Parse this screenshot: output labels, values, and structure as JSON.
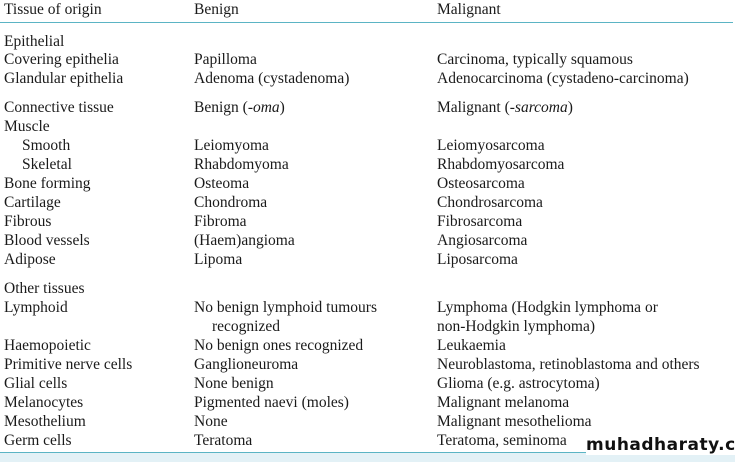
{
  "header": {
    "tissue": "Tissue of origin",
    "benign": "Benign",
    "malignant": "Malignant"
  },
  "rows": [
    {
      "tissue": "Epithelial",
      "benign": "",
      "malignant": "",
      "group": true
    },
    {
      "tissue": "Covering epithelia",
      "benign": "Papilloma",
      "malignant": "Carcinoma, typically squamous"
    },
    {
      "tissue": "Glandular epithelia",
      "benign": "Adenoma (cystadenoma)",
      "malignant": "Adenocarcinoma (cystadeno-carcinoma)"
    },
    {
      "tissue": "Connective tissue",
      "benign": "Benign (-oma)",
      "malignant": "Malignant (-sarcoma)",
      "group": true
    },
    {
      "tissue": "Muscle",
      "benign": "",
      "malignant": ""
    },
    {
      "tissue": "Smooth",
      "benign": "Leiomyoma",
      "malignant": "Leiomyosarcoma",
      "indent": true
    },
    {
      "tissue": "Skeletal",
      "benign": "Rhabdomyoma",
      "malignant": "Rhabdomyosarcoma",
      "indent": true
    },
    {
      "tissue": "Bone forming",
      "benign": "Osteoma",
      "malignant": "Osteosarcoma"
    },
    {
      "tissue": "Cartilage",
      "benign": "Chondroma",
      "malignant": "Chondrosarcoma"
    },
    {
      "tissue": "Fibrous",
      "benign": "Fibroma",
      "malignant": "Fibrosarcoma"
    },
    {
      "tissue": "Blood vessels",
      "benign": "(Haem)angioma",
      "malignant": "Angiosarcoma"
    },
    {
      "tissue": "Adipose",
      "benign": "Lipoma",
      "malignant": "Liposarcoma"
    },
    {
      "tissue": "Other tissues",
      "benign": "",
      "malignant": "",
      "group": true
    },
    {
      "tissue": "Lymphoid",
      "benign": "No benign lymphoid tumours",
      "malignant": "Lymphoma (Hodgkin lymphoma or"
    },
    {
      "tissue": "",
      "benign": "recognized",
      "malignant": "non-Hodgkin lymphoma)",
      "indent_benign": true
    },
    {
      "tissue": "Haemopoietic",
      "benign": "No benign ones recognized",
      "malignant": "Leukaemia"
    },
    {
      "tissue": "Primitive nerve cells",
      "benign": "Ganglioneuroma",
      "malignant": "Neuroblastoma, retinoblastoma and others"
    },
    {
      "tissue": "Glial cells",
      "benign": "None benign",
      "malignant": "Glioma (e.g. astrocytoma)"
    },
    {
      "tissue": "Melanocytes",
      "benign": "Pigmented naevi (moles)",
      "malignant": "Malignant melanoma"
    },
    {
      "tissue": "Mesothelium",
      "benign": "None",
      "malignant": "Malignant mesothelioma"
    },
    {
      "tissue": "Germ cells",
      "benign": "Teratoma",
      "malignant": "Teratoma, seminoma"
    }
  ],
  "watermark": "muhadharaty.com",
  "colors": {
    "rule": "#5bb4c4",
    "band": "#e3f1f6"
  }
}
